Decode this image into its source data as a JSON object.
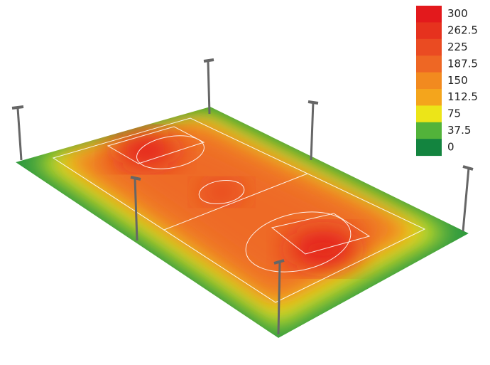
{
  "legend": {
    "items": [
      {
        "label": "300",
        "color": "#e3191c"
      },
      {
        "label": "262.5",
        "color": "#e6321e"
      },
      {
        "label": "225",
        "color": "#ea4b22"
      },
      {
        "label": "187.5",
        "color": "#ee6724"
      },
      {
        "label": "150",
        "color": "#f28a1f"
      },
      {
        "label": "112.5",
        "color": "#f4a51c"
      },
      {
        "label": "75",
        "color": "#ece518"
      },
      {
        "label": "37.5",
        "color": "#52b33a"
      },
      {
        "label": "0",
        "color": "#13843f"
      }
    ]
  }
}
